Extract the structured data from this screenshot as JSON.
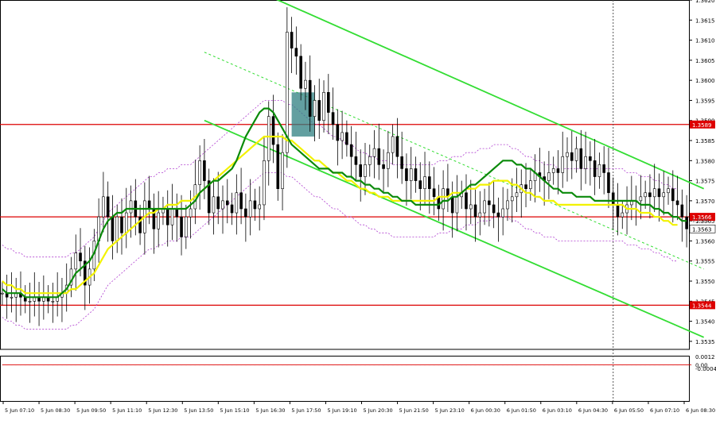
{
  "chart_data": {
    "type": "candlestick",
    "symbol": "GBPUSD",
    "main": {
      "ylim": [
        1.3533,
        1.362
      ],
      "y_ticks": [
        "1.3620",
        "1.3615",
        "1.3610",
        "1.3605",
        "1.3600",
        "1.3595",
        "1.3590",
        "1.3585",
        "1.3580",
        "1.3575",
        "1.3570",
        "1.3565",
        "1.3560",
        "1.3555",
        "1.3550",
        "1.3545",
        "1.3540",
        "1.3535"
      ],
      "horizontal_levels": [
        {
          "value": 1.3589,
          "label": "1.3589",
          "color": "#dd0000"
        },
        {
          "value": 1.3566,
          "label": "1.3566",
          "color": "#dd0000"
        },
        {
          "value": 1.3544,
          "label": "1.3544",
          "color": "#dd0000"
        }
      ],
      "price_label": {
        "value": 1.3563,
        "label": "1.3563"
      },
      "secondary_label": {
        "value": 1.3565,
        "label": "1.3565"
      },
      "close_series": [
        1.3547,
        1.3546,
        1.3546,
        1.3547,
        1.3546,
        1.3545,
        1.3545,
        1.3546,
        1.3545,
        1.3546,
        1.3545,
        1.3545,
        1.3546,
        1.3547,
        1.3549,
        1.3553,
        1.3557,
        1.3555,
        1.3549,
        1.3553,
        1.356,
        1.3566,
        1.3571,
        1.3566,
        1.356,
        1.3566,
        1.3562,
        1.3567,
        1.357,
        1.3566,
        1.3562,
        1.357,
        1.3568,
        1.3563,
        1.3567,
        1.3568,
        1.3564,
        1.3568,
        1.3566,
        1.3561,
        1.3566,
        1.3568,
        1.3574,
        1.358,
        1.3575,
        1.3567,
        1.3571,
        1.3568,
        1.357,
        1.3569,
        1.3567,
        1.3572,
        1.3568,
        1.3566,
        1.357,
        1.3568,
        1.3569,
        1.358,
        1.3591,
        1.3584,
        1.3573,
        1.3582,
        1.3612,
        1.3608,
        1.3606,
        1.3598,
        1.36,
        1.3591,
        1.3595,
        1.359,
        1.3597,
        1.3592,
        1.3589,
        1.3585,
        1.3587,
        1.3584,
        1.3581,
        1.3579,
        1.3576,
        1.3579,
        1.3581,
        1.3583,
        1.3579,
        1.3578,
        1.3582,
        1.3586,
        1.3581,
        1.3578,
        1.3575,
        1.3578,
        1.3575,
        1.3573,
        1.3576,
        1.3573,
        1.3571,
        1.3568,
        1.3573,
        1.3571,
        1.3567,
        1.3571,
        1.3572,
        1.3568,
        1.3569,
        1.3566,
        1.3567,
        1.357,
        1.3569,
        1.3567,
        1.3566,
        1.3568,
        1.357,
        1.3571,
        1.3572,
        1.3574,
        1.3573,
        1.3575,
        1.3577,
        1.3576,
        1.3575,
        1.3577,
        1.3578,
        1.3577,
        1.3581,
        1.3582,
        1.358,
        1.3583,
        1.3578,
        1.3581,
        1.358,
        1.3576,
        1.3579,
        1.3577,
        1.3572,
        1.3569,
        1.3566,
        1.3567,
        1.3569,
        1.357,
        1.357,
        1.3571,
        1.3572,
        1.3571,
        1.3573,
        1.3571,
        1.3572,
        1.3573,
        1.357,
        1.3569,
        1.3566,
        1.3563
      ],
      "ma_green": [
        1.3548,
        1.3547,
        1.3547,
        1.3547,
        1.3547,
        1.3546,
        1.3546,
        1.3546,
        1.3546,
        1.3546,
        1.3546,
        1.3546,
        1.3546,
        1.3547,
        1.3548,
        1.355,
        1.3552,
        1.3553,
        1.3554,
        1.3555,
        1.3557,
        1.356,
        1.3563,
        1.3565,
        1.3566,
        1.3567,
        1.3567,
        1.3568,
        1.3568,
        1.3568,
        1.3568,
        1.3568,
        1.3568,
        1.3568,
        1.3568,
        1.3568,
        1.3568,
        1.3568,
        1.3568,
        1.3568,
        1.3568,
        1.3569,
        1.357,
        1.3572,
        1.3573,
        1.3574,
        1.3575,
        1.3575,
        1.3576,
        1.3577,
        1.3578,
        1.358,
        1.3583,
        1.3586,
        1.3588,
        1.359,
        1.3592,
        1.3593,
        1.3593,
        1.3592,
        1.359,
        1.3588,
        1.3586,
        1.3584,
        1.3583,
        1.3582,
        1.3581,
        1.358,
        1.3579,
        1.3578,
        1.3578,
        1.3578,
        1.3577,
        1.3577,
        1.3577,
        1.3576,
        1.3576,
        1.3575,
        1.3575,
        1.3574,
        1.3574,
        1.3573,
        1.3573,
        1.3572,
        1.3572,
        1.3571,
        1.3571,
        1.357,
        1.357,
        1.357,
        1.3569,
        1.3569,
        1.3569,
        1.3569,
        1.3569,
        1.3569,
        1.357,
        1.357,
        1.3571,
        1.3571,
        1.3572,
        1.3573,
        1.3574,
        1.3574,
        1.3575,
        1.3576,
        1.3577,
        1.3578,
        1.3579,
        1.358,
        1.358,
        1.358,
        1.3579,
        1.3579,
        1.3578,
        1.3578,
        1.3577,
        1.3576,
        1.3575,
        1.3574,
        1.3573,
        1.3573,
        1.3572,
        1.3572,
        1.3572,
        1.3571,
        1.3571,
        1.3571,
        1.3571,
        1.357,
        1.357,
        1.357,
        1.357,
        1.357,
        1.357,
        1.357,
        1.357,
        1.357,
        1.357,
        1.3569,
        1.3569,
        1.3569,
        1.3568,
        1.3568,
        1.3567,
        1.3567,
        1.3566,
        1.3566,
        1.3565,
        1.3565
      ],
      "ma_yellow": [
        1.355,
        1.3549,
        1.3549,
        1.3548,
        1.3548,
        1.3547,
        1.3547,
        1.3547,
        1.3547,
        1.3547,
        1.3547,
        1.3547,
        1.3547,
        1.3547,
        1.3547,
        1.3548,
        1.3548,
        1.3549,
        1.355,
        1.3551,
        1.3552,
        1.3554,
        1.3556,
        1.3558,
        1.3559,
        1.356,
        1.3561,
        1.3562,
        1.3563,
        1.3564,
        1.3565,
        1.3566,
        1.3567,
        1.3567,
        1.3568,
        1.3568,
        1.3569,
        1.3569,
        1.3569,
        1.357,
        1.357,
        1.357,
        1.3571,
        1.3572,
        1.3573,
        1.3574,
        1.3575,
        1.3576,
        1.3577,
        1.3578,
        1.3579,
        1.358,
        1.3581,
        1.3582,
        1.3583,
        1.3584,
        1.3585,
        1.3586,
        1.3586,
        1.3586,
        1.3586,
        1.3586,
        1.3585,
        1.3585,
        1.3584,
        1.3583,
        1.3582,
        1.3581,
        1.358,
        1.358,
        1.3579,
        1.3578,
        1.3577,
        1.3577,
        1.3576,
        1.3575,
        1.3575,
        1.3574,
        1.3573,
        1.3573,
        1.3572,
        1.3572,
        1.3571,
        1.3571,
        1.3571,
        1.357,
        1.357,
        1.357,
        1.357,
        1.357,
        1.357,
        1.357,
        1.357,
        1.357,
        1.357,
        1.3571,
        1.3571,
        1.3571,
        1.3572,
        1.3572,
        1.3572,
        1.3573,
        1.3573,
        1.3573,
        1.3574,
        1.3574,
        1.3574,
        1.3575,
        1.3575,
        1.3575,
        1.3575,
        1.3574,
        1.3574,
        1.3573,
        1.3572,
        1.3572,
        1.3571,
        1.3571,
        1.357,
        1.357,
        1.357,
        1.3569,
        1.3569,
        1.3569,
        1.3569,
        1.3569,
        1.3569,
        1.3569,
        1.3569,
        1.3569,
        1.3569,
        1.3569,
        1.3569,
        1.3569,
        1.3569,
        1.3569,
        1.3568,
        1.3568,
        1.3568,
        1.3567,
        1.3567,
        1.3567,
        1.3566,
        1.3566,
        1.3565,
        1.3565,
        1.3564,
        1.3564
      ],
      "trend_lines": [
        {
          "name": "channel-upper",
          "x": [
            58,
            151
          ],
          "y": [
            1.3621,
            1.3573
          ],
          "color": "#33dd33"
        },
        {
          "name": "channel-lower",
          "x": [
            44,
            151
          ],
          "y": [
            1.359,
            1.3536
          ],
          "color": "#33dd33"
        },
        {
          "name": "channel-mid",
          "x": [
            44,
            151
          ],
          "y": [
            1.3607,
            1.3553
          ],
          "color": "#33dd33",
          "dashed": true
        }
      ],
      "highlight_box": {
        "x_range": [
          63,
          68
        ],
        "y_range": [
          1.3586,
          1.3597
        ]
      },
      "vertical_marker_index": 133
    },
    "oscillator": {
      "ylim": [
        -0.0051,
        0.0013
      ],
      "y_ticks": [
        "0.0012",
        "0.00",
        "-0.00048"
      ],
      "histogram": [
        0.0,
        0.0,
        0.0,
        0.0,
        0.0,
        0.0,
        0.0,
        0.0,
        0.0,
        0.0,
        0.0,
        0.0,
        0.0,
        0.0,
        0.0,
        0.0,
        0.0,
        0.0,
        0.0,
        0.0,
        0.0,
        0.0,
        0.0,
        0.0,
        0.0,
        0.0,
        0.0,
        0.0,
        0.0,
        0.0,
        0.0,
        0.0,
        0.0,
        0.0,
        0.0,
        0.0,
        0.0,
        0.0,
        0.0,
        0.0,
        0.0,
        0.0,
        0.0,
        0.0,
        0.0,
        0.0,
        0.0,
        0.0,
        0.0,
        0.0,
        0.0,
        0.0,
        0.0,
        0.0,
        0.0,
        0.0,
        0.0,
        0.0,
        0.0,
        0.0,
        0.0,
        0.0,
        0.0,
        0.0,
        0.0,
        0.0,
        0.0,
        0.0,
        0.0,
        0.0,
        0.0,
        0.0,
        0.0,
        0.0,
        0.0,
        0.0,
        0.0,
        0.0,
        0.0,
        0.0,
        0.0,
        0.0,
        0.0,
        0.0,
        0.0,
        0.0,
        0.0,
        0.0,
        0.0,
        0.0,
        0.0,
        0.0,
        0.0,
        0.0,
        0.0,
        0.0,
        0.0,
        0.0,
        0.0,
        0.0,
        0.0,
        0.0,
        0.0,
        0.0,
        0.0,
        0.0,
        0.0,
        0.0,
        0.0,
        0.0,
        0.0,
        0.0,
        0.0,
        0.0,
        0.0,
        0.0,
        0.0,
        0.0,
        0.0,
        0.0,
        0.0,
        0.0,
        0.0,
        0.0,
        0.0,
        0.0,
        0.0,
        0.0,
        0.0,
        0.0,
        0.0,
        0.0,
        0.0,
        0.0,
        0.0,
        0.0,
        0.0,
        0.0,
        0.0,
        0.0,
        0.0,
        0.0,
        0.0,
        0.0,
        0.0,
        0.0,
        0.0,
        0.0,
        0.0,
        0.0,
        0.0
      ],
      "signal": [
        0.0,
        0.0,
        0.0,
        0.0,
        0.0,
        0.0,
        0.0,
        0.0,
        0.0,
        0.0,
        0.0,
        0.0,
        0.0,
        0.0,
        0.0,
        0.0,
        0.0,
        0.0,
        0.0,
        0.0,
        0.0,
        0.0,
        0.0,
        0.0,
        0.0,
        0.0,
        0.0,
        0.0,
        0.0,
        0.0,
        0.0,
        0.0,
        0.0,
        0.0,
        0.0,
        0.0,
        0.0,
        0.0,
        0.0,
        0.0,
        0.0,
        0.0,
        0.0,
        0.0,
        0.0,
        0.0,
        0.0,
        0.0,
        0.0,
        0.0,
        0.0,
        0.0,
        0.0,
        0.0,
        0.0,
        0.0,
        0.0,
        0.0,
        0.0,
        0.0,
        0.0,
        0.0,
        0.0,
        0.0,
        0.0,
        0.0,
        0.0,
        0.0,
        0.0,
        0.0,
        0.0,
        0.0,
        0.0,
        0.0,
        0.0,
        0.0,
        0.0,
        0.0,
        0.0,
        0.0,
        0.0,
        0.0,
        0.0,
        0.0,
        0.0,
        0.0,
        0.0,
        0.0,
        0.0,
        0.0,
        0.0,
        0.0,
        0.0,
        0.0,
        0.0,
        0.0,
        0.0,
        0.0,
        0.0,
        0.0,
        0.0,
        0.0,
        0.0,
        0.0,
        0.0,
        0.0,
        0.0,
        0.0,
        0.0,
        0.0,
        0.0,
        0.0,
        0.0,
        0.0,
        0.0,
        0.0,
        0.0,
        0.0,
        0.0,
        0.0,
        0.0,
        0.0,
        0.0,
        0.0,
        0.0,
        0.0,
        0.0,
        0.0,
        0.0,
        0.0,
        0.0,
        0.0,
        0.0,
        0.0,
        0.0,
        0.0,
        0.0,
        0.0,
        0.0,
        0.0,
        0.0,
        0.0,
        0.0,
        0.0,
        0.0,
        0.0,
        0.0,
        0.0,
        0.0,
        0.0,
        0.0
      ]
    },
    "x_tick_labels": [
      "5 Jun 07:10",
      "5 Jun 08:30",
      "5 Jun 09:50",
      "5 Jun 11:10",
      "5 Jun 12:30",
      "5 Jun 13:50",
      "5 Jun 15:10",
      "5 Jun 16:30",
      "5 Jun 17:50",
      "5 Jun 19:10",
      "5 Jun 20:30",
      "5 Jun 21:50",
      "5 Jun 23:10",
      "6 Jun 00:30",
      "6 Jun 01:50",
      "6 Jun 03:10",
      "6 Jun 04:30",
      "6 Jun 05:50",
      "6 Jun 07:10",
      "6 Jun 08:30"
    ],
    "colors": {
      "candle": "#000000",
      "bollinger": "#b040d0",
      "ma_green": "#0a8a0a",
      "ma_yellow": "#f2f200",
      "level": "#dd0000",
      "box": "#2e7f80",
      "histogram": "#b8b8b8",
      "signal": "#dd0000"
    }
  }
}
